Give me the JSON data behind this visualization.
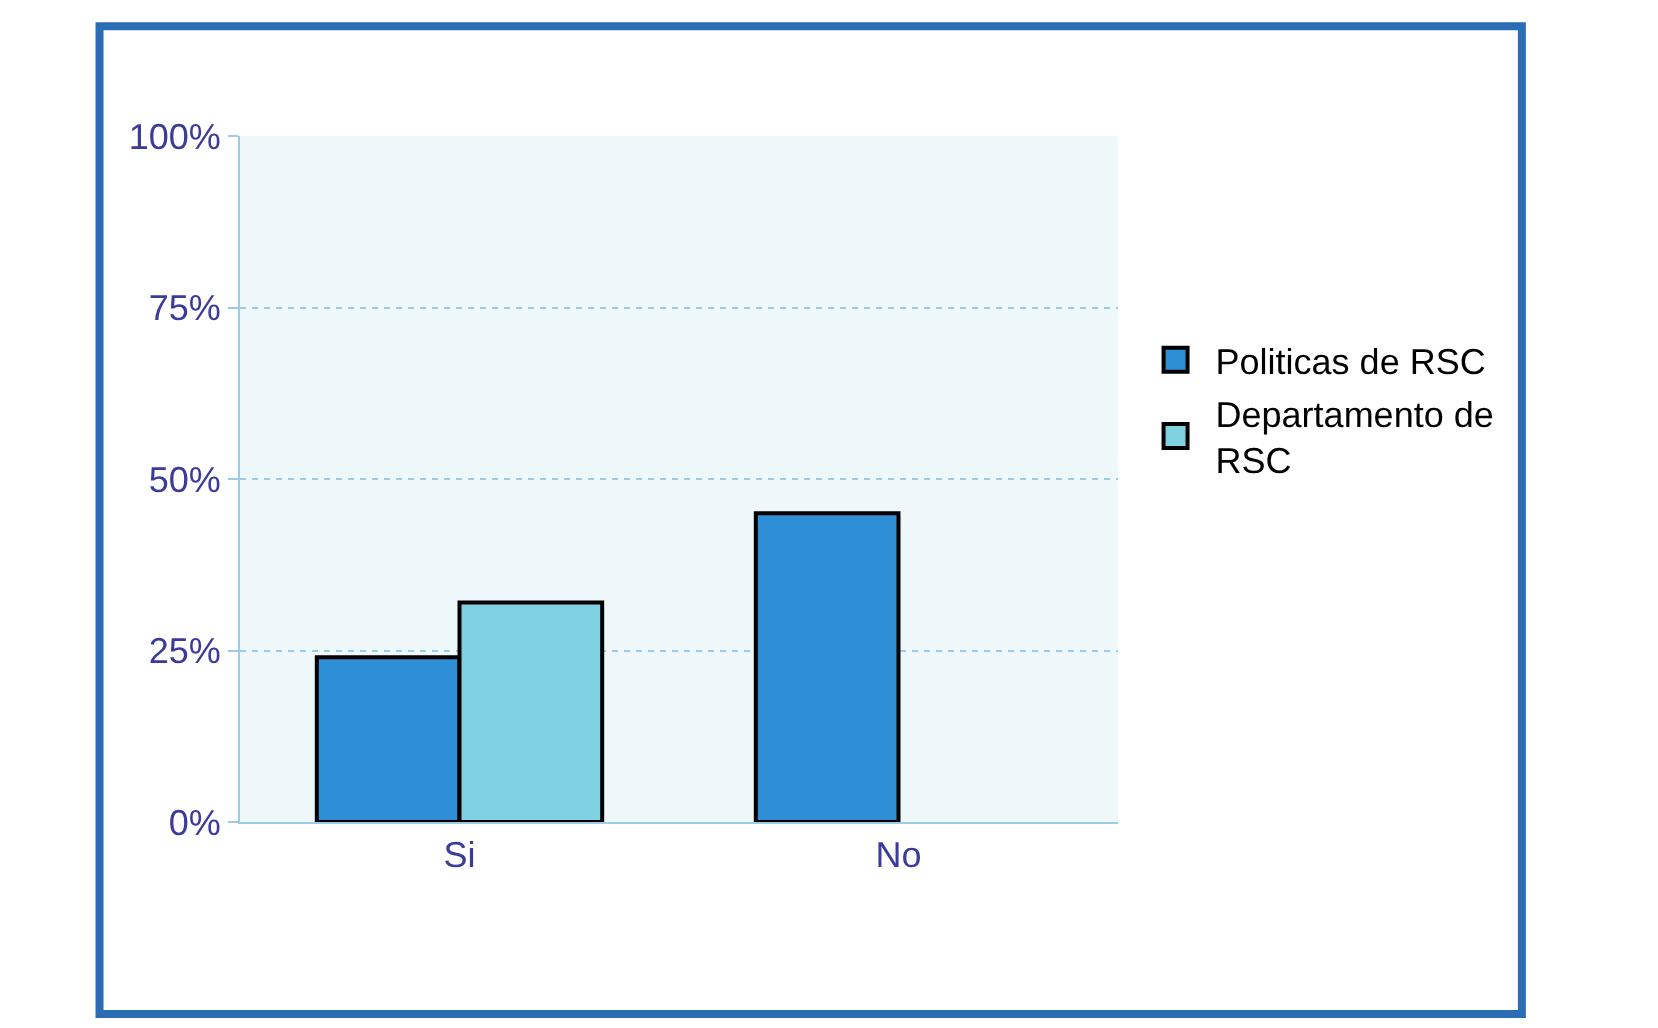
{
  "chart_data": {
    "type": "bar",
    "categories": [
      "Si",
      "No"
    ],
    "series": [
      {
        "name": "Politicas de RSC",
        "color": "#2f8fd6",
        "values": [
          24,
          45
        ]
      },
      {
        "name": "Departamento de RSC",
        "color": "#7fd0e0",
        "values": [
          32,
          null
        ]
      }
    ],
    "ylim": [
      0,
      100
    ],
    "yticks": [
      {
        "value": 0,
        "label": "0%"
      },
      {
        "value": 25,
        "label": "25%"
      },
      {
        "value": 50,
        "label": "50%"
      },
      {
        "value": 75,
        "label": "75%"
      },
      {
        "value": 100,
        "label": "100%"
      }
    ],
    "grid": "y",
    "legend": "right"
  }
}
